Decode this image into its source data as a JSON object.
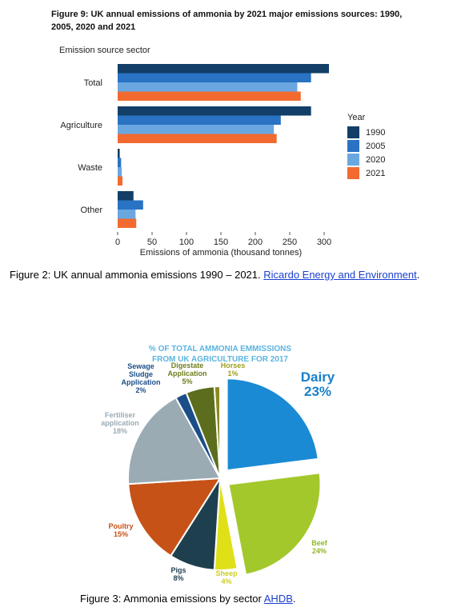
{
  "figure1": {
    "title": "Figure 9: UK annual emissions of ammonia by 2021 major emissions sources: 1990, 2005, 2020 and 2021",
    "caption_text": "Figure 2: UK annual ammonia emissions 1990 – 2021. ",
    "caption_link": "Ricardo Energy and Environment",
    "caption_end": "."
  },
  "figure2": {
    "title_line1": "% OF TOTAL AMMONIA EMMISSIONS",
    "title_line2": "FROM UK AGRICULTURE FOR 2017",
    "caption_text": "Figure 3: Ammonia emissions by sector ",
    "caption_link": "AHDB",
    "caption_end": "."
  },
  "chart_data": [
    {
      "type": "bar",
      "orientation": "horizontal",
      "title": "Figure 9: UK annual emissions of ammonia by 2021 major emissions sources: 1990, 2005, 2020 and 2021",
      "category_axis_label": "Emission source sector",
      "xlabel": "Emissions of ammonia (thousand tonnes)",
      "categories": [
        "Total",
        "Agriculture",
        "Waste",
        "Other"
      ],
      "legend_title": "Year",
      "legend_position": "right",
      "xlim": [
        0,
        300
      ],
      "xticks": [
        0,
        50,
        100,
        150,
        200,
        250,
        300
      ],
      "series": [
        {
          "name": "1990",
          "color": "#123e67",
          "values": [
            307,
            281,
            3,
            23
          ]
        },
        {
          "name": "2005",
          "color": "#2a72c3",
          "values": [
            281,
            237,
            5,
            37
          ]
        },
        {
          "name": "2020",
          "color": "#6aa7e0",
          "values": [
            261,
            227,
            6,
            26
          ]
        },
        {
          "name": "2021",
          "color": "#f26a2f",
          "values": [
            266,
            231,
            7,
            27
          ]
        }
      ]
    },
    {
      "type": "pie",
      "title": "% OF TOTAL AMMONIA EMMISSIONS FROM UK AGRICULTURE FOR 2017",
      "slices": [
        {
          "label": "Dairy",
          "pct_label": "23%",
          "value": 23,
          "color": "#1a8ad4",
          "label_color": "#1a7fc8",
          "exploded": true
        },
        {
          "label": "Beef",
          "pct_label": "24%",
          "value": 24,
          "color": "#a3c82c",
          "label_color": "#8fb82a",
          "exploded": true
        },
        {
          "label": "Sheep",
          "pct_label": "4%",
          "value": 4,
          "color": "#e0e018",
          "label_color": "#cfcf1a",
          "exploded": false
        },
        {
          "label": "Pigs",
          "pct_label": "8%",
          "value": 8,
          "color": "#1e3f4e",
          "label_color": "#1e3f4e",
          "exploded": false
        },
        {
          "label": "Poultry",
          "pct_label": "15%",
          "value": 15,
          "color": "#c65217",
          "label_color": "#c65217",
          "exploded": false
        },
        {
          "label": "Fertiliser application",
          "pct_label": "18%",
          "value": 18,
          "color": "#9aabb4",
          "label_color": "#9aabb4",
          "exploded": false
        },
        {
          "label": "Sewage Sludge Application",
          "pct_label": "2%",
          "value": 2,
          "color": "#1b4e88",
          "label_color": "#1b4e88",
          "exploded": false
        },
        {
          "label": "Digestate Application",
          "pct_label": "5%",
          "value": 5,
          "color": "#5c6e1e",
          "label_color": "#6e7e1e",
          "exploded": false
        },
        {
          "label": "Horses",
          "pct_label": "1%",
          "value": 1,
          "color": "#8a8a20",
          "label_color": "#9e9e1e",
          "exploded": false
        }
      ]
    }
  ]
}
